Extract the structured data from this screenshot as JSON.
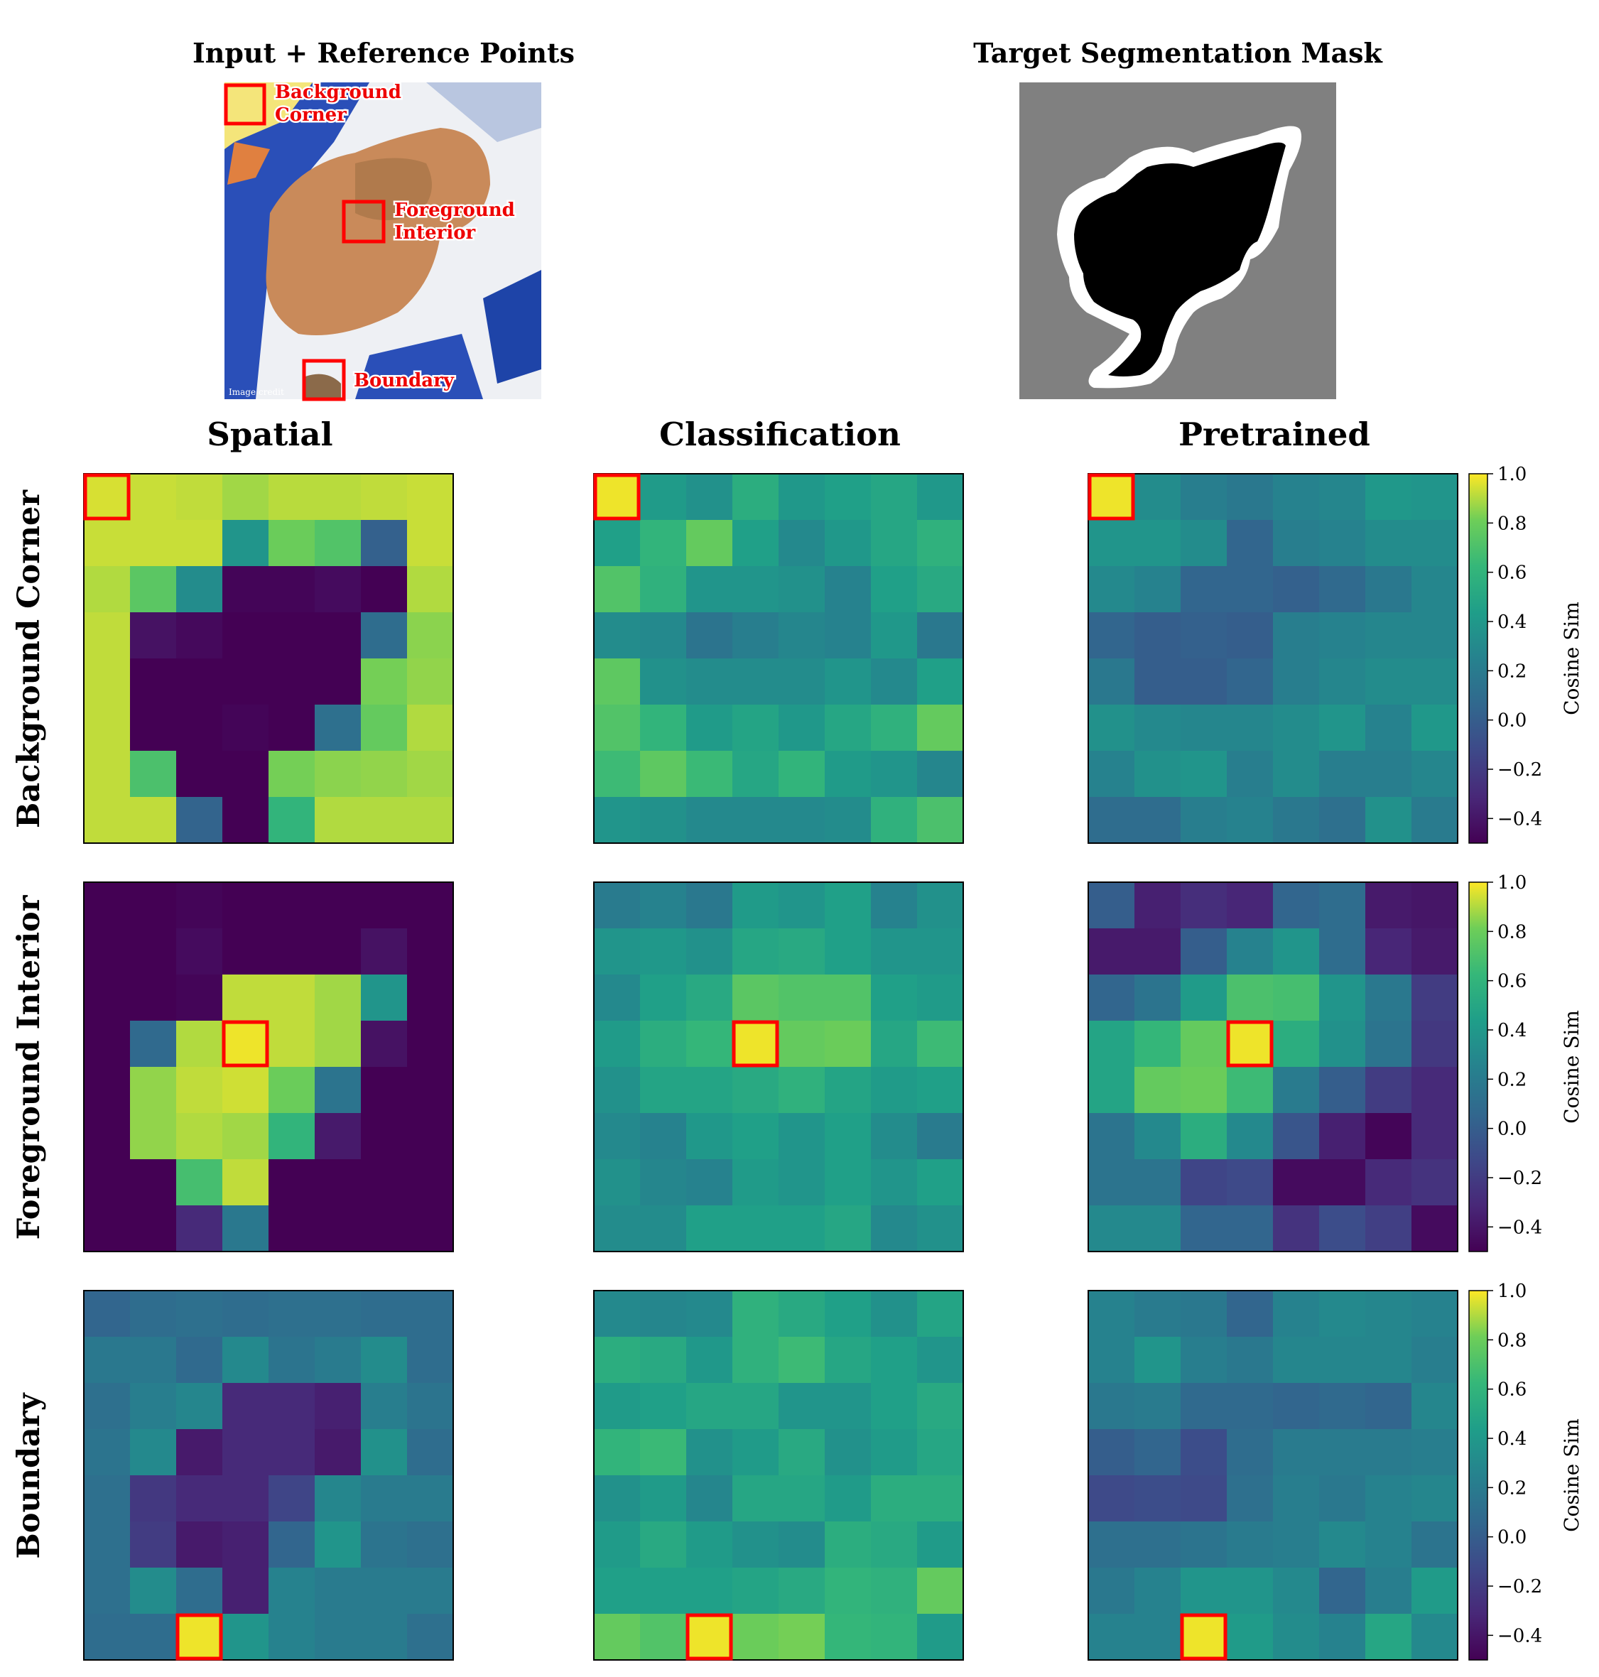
{
  "chart_data": {
    "type": "heatmap",
    "top_panels": {
      "input_title": "Input + Reference Points",
      "mask_title": "Target Segmentation Mask",
      "reference_labels": [
        {
          "id": "background",
          "line1": "Background",
          "line2": "Corner"
        },
        {
          "id": "foreground",
          "line1": "Foreground",
          "line2": "Interior"
        },
        {
          "id": "boundary",
          "line1": "Boundary",
          "line2": ""
        }
      ],
      "image_caption": "Image credit"
    },
    "column_titles": [
      "Spatial",
      "Classification",
      "Pretrained"
    ],
    "row_titles": [
      "Background Corner",
      "Foreground Interior",
      "Boundary"
    ],
    "colorbar": {
      "label": "Cosine Sim",
      "vmin": -0.5,
      "vmax": 1.0,
      "ticks": [
        "1.0",
        "0.8",
        "0.6",
        "0.4",
        "0.2",
        "0.0",
        "−0.2",
        "−0.4"
      ],
      "tick_values": [
        1.0,
        0.8,
        0.6,
        0.4,
        0.2,
        0.0,
        -0.2,
        -0.4
      ]
    },
    "grid_size": 8,
    "reference_cells": [
      [
        0,
        0
      ],
      [
        3,
        3
      ],
      [
        7,
        2
      ]
    ],
    "heatmaps": [
      [
        [
          [
            0.95,
            0.93,
            0.92,
            0.88,
            0.91,
            0.91,
            0.92,
            0.93
          ],
          [
            0.93,
            0.93,
            0.93,
            0.38,
            0.8,
            0.72,
            0.02,
            0.93
          ],
          [
            0.9,
            0.75,
            0.32,
            -0.48,
            -0.48,
            -0.45,
            -0.5,
            0.9
          ],
          [
            0.92,
            -0.42,
            -0.46,
            -0.5,
            -0.5,
            -0.5,
            0.1,
            0.85
          ],
          [
            0.92,
            -0.5,
            -0.5,
            -0.5,
            -0.5,
            -0.5,
            0.82,
            0.86
          ],
          [
            0.92,
            -0.5,
            -0.5,
            -0.48,
            -0.5,
            0.12,
            0.78,
            0.9
          ],
          [
            0.92,
            0.7,
            -0.5,
            -0.5,
            0.82,
            0.85,
            0.86,
            0.88
          ],
          [
            0.92,
            0.92,
            0.04,
            -0.5,
            0.6,
            0.9,
            0.9,
            0.9
          ]
        ],
        [
          [
            0.98,
            0.42,
            0.35,
            0.55,
            0.4,
            0.45,
            0.5,
            0.4
          ],
          [
            0.45,
            0.6,
            0.78,
            0.45,
            0.3,
            0.4,
            0.5,
            0.58
          ],
          [
            0.72,
            0.58,
            0.38,
            0.38,
            0.35,
            0.25,
            0.45,
            0.52
          ],
          [
            0.32,
            0.3,
            0.15,
            0.22,
            0.28,
            0.25,
            0.4,
            0.18
          ],
          [
            0.76,
            0.35,
            0.32,
            0.32,
            0.32,
            0.38,
            0.3,
            0.45
          ],
          [
            0.72,
            0.6,
            0.42,
            0.48,
            0.4,
            0.5,
            0.58,
            0.78
          ],
          [
            0.65,
            0.76,
            0.64,
            0.5,
            0.6,
            0.42,
            0.38,
            0.28
          ],
          [
            0.38,
            0.35,
            0.3,
            0.3,
            0.3,
            0.32,
            0.58,
            0.7
          ]
        ],
        [
          [
            0.98,
            0.32,
            0.22,
            0.18,
            0.25,
            0.28,
            0.4,
            0.38
          ],
          [
            0.38,
            0.38,
            0.32,
            0.05,
            0.22,
            0.25,
            0.32,
            0.32
          ],
          [
            0.3,
            0.25,
            0.05,
            0.05,
            0.02,
            0.08,
            0.18,
            0.28
          ],
          [
            0.05,
            0.0,
            0.02,
            0.0,
            0.22,
            0.25,
            0.28,
            0.28
          ],
          [
            0.18,
            0.0,
            0.0,
            0.05,
            0.22,
            0.28,
            0.32,
            0.32
          ],
          [
            0.35,
            0.3,
            0.28,
            0.28,
            0.32,
            0.38,
            0.25,
            0.4
          ],
          [
            0.25,
            0.35,
            0.38,
            0.22,
            0.32,
            0.22,
            0.22,
            0.28
          ],
          [
            0.1,
            0.1,
            0.22,
            0.25,
            0.18,
            0.12,
            0.35,
            0.2
          ]
        ]
      ],
      [
        [
          [
            -0.5,
            -0.5,
            -0.48,
            -0.5,
            -0.5,
            -0.5,
            -0.5,
            -0.5
          ],
          [
            -0.5,
            -0.5,
            -0.45,
            -0.5,
            -0.5,
            -0.5,
            -0.42,
            -0.5
          ],
          [
            -0.5,
            -0.5,
            -0.48,
            0.92,
            0.92,
            0.88,
            0.38,
            -0.5
          ],
          [
            -0.5,
            0.08,
            0.9,
            0.98,
            0.92,
            0.88,
            -0.42,
            -0.5
          ],
          [
            -0.5,
            0.86,
            0.92,
            0.94,
            0.8,
            0.15,
            -0.5,
            -0.5
          ],
          [
            -0.5,
            0.86,
            0.9,
            0.88,
            0.6,
            -0.38,
            -0.5,
            -0.5
          ],
          [
            -0.5,
            -0.5,
            0.68,
            0.92,
            -0.5,
            -0.5,
            -0.5,
            -0.5
          ],
          [
            -0.5,
            -0.5,
            -0.3,
            0.18,
            -0.5,
            -0.5,
            -0.5,
            -0.5
          ]
        ],
        [
          [
            0.2,
            0.25,
            0.18,
            0.42,
            0.38,
            0.45,
            0.25,
            0.35
          ],
          [
            0.38,
            0.4,
            0.35,
            0.5,
            0.52,
            0.45,
            0.38,
            0.38
          ],
          [
            0.3,
            0.45,
            0.52,
            0.75,
            0.72,
            0.72,
            0.45,
            0.42
          ],
          [
            0.42,
            0.55,
            0.62,
            0.98,
            0.78,
            0.8,
            0.5,
            0.65
          ],
          [
            0.35,
            0.48,
            0.48,
            0.52,
            0.58,
            0.48,
            0.42,
            0.45
          ],
          [
            0.3,
            0.25,
            0.4,
            0.45,
            0.38,
            0.45,
            0.32,
            0.2
          ],
          [
            0.35,
            0.28,
            0.25,
            0.42,
            0.38,
            0.45,
            0.38,
            0.45
          ],
          [
            0.32,
            0.32,
            0.45,
            0.45,
            0.45,
            0.5,
            0.3,
            0.35
          ]
        ],
        [
          [
            0.0,
            -0.35,
            -0.28,
            -0.32,
            0.05,
            0.1,
            -0.38,
            -0.4
          ],
          [
            -0.38,
            -0.38,
            0.0,
            0.25,
            0.38,
            0.1,
            -0.32,
            -0.38
          ],
          [
            0.05,
            0.15,
            0.42,
            0.7,
            0.68,
            0.38,
            0.18,
            -0.2
          ],
          [
            0.48,
            0.62,
            0.78,
            0.98,
            0.55,
            0.35,
            0.15,
            -0.22
          ],
          [
            0.48,
            0.78,
            0.8,
            0.65,
            0.2,
            0.0,
            -0.2,
            -0.3
          ],
          [
            0.15,
            0.3,
            0.55,
            0.3,
            -0.05,
            -0.35,
            -0.48,
            -0.3
          ],
          [
            0.15,
            0.15,
            -0.15,
            -0.12,
            -0.45,
            -0.45,
            -0.3,
            -0.25
          ],
          [
            0.3,
            0.3,
            0.05,
            0.05,
            -0.25,
            -0.1,
            -0.18,
            -0.45
          ]
        ]
      ],
      [
        [
          [
            0.05,
            0.1,
            0.12,
            0.1,
            0.12,
            0.12,
            0.1,
            0.1
          ],
          [
            0.18,
            0.18,
            0.08,
            0.3,
            0.15,
            0.2,
            0.32,
            0.1
          ],
          [
            0.12,
            0.22,
            0.28,
            -0.3,
            -0.3,
            -0.35,
            0.22,
            0.15
          ],
          [
            0.15,
            0.3,
            -0.38,
            -0.3,
            -0.3,
            -0.38,
            0.35,
            0.1
          ],
          [
            0.12,
            -0.22,
            -0.3,
            -0.3,
            -0.15,
            0.28,
            0.2,
            0.2
          ],
          [
            0.12,
            -0.2,
            -0.38,
            -0.35,
            0.05,
            0.38,
            0.15,
            0.12
          ],
          [
            0.12,
            0.32,
            0.1,
            -0.35,
            0.25,
            0.2,
            0.2,
            0.2
          ],
          [
            0.1,
            0.1,
            0.98,
            0.38,
            0.25,
            0.2,
            0.2,
            0.12
          ]
        ],
        [
          [
            0.3,
            0.28,
            0.3,
            0.58,
            0.52,
            0.45,
            0.35,
            0.48
          ],
          [
            0.55,
            0.52,
            0.4,
            0.58,
            0.65,
            0.5,
            0.45,
            0.38
          ],
          [
            0.42,
            0.45,
            0.5,
            0.5,
            0.38,
            0.38,
            0.45,
            0.52
          ],
          [
            0.6,
            0.64,
            0.35,
            0.42,
            0.52,
            0.35,
            0.42,
            0.5
          ],
          [
            0.35,
            0.42,
            0.28,
            0.5,
            0.5,
            0.42,
            0.55,
            0.55
          ],
          [
            0.42,
            0.52,
            0.42,
            0.35,
            0.32,
            0.55,
            0.52,
            0.42
          ],
          [
            0.45,
            0.45,
            0.45,
            0.48,
            0.52,
            0.6,
            0.58,
            0.78
          ],
          [
            0.78,
            0.72,
            0.98,
            0.8,
            0.82,
            0.62,
            0.6,
            0.42
          ]
        ],
        [
          [
            0.25,
            0.2,
            0.18,
            0.05,
            0.25,
            0.3,
            0.28,
            0.25
          ],
          [
            0.25,
            0.38,
            0.22,
            0.18,
            0.28,
            0.28,
            0.28,
            0.22
          ],
          [
            0.18,
            0.2,
            0.08,
            0.08,
            0.05,
            0.08,
            0.05,
            0.28
          ],
          [
            0.0,
            0.05,
            -0.1,
            0.1,
            0.2,
            0.2,
            0.2,
            0.22
          ],
          [
            -0.12,
            -0.1,
            -0.12,
            0.12,
            0.22,
            0.18,
            0.25,
            0.28
          ],
          [
            0.12,
            0.12,
            0.15,
            0.2,
            0.22,
            0.3,
            0.25,
            0.15
          ],
          [
            0.18,
            0.25,
            0.38,
            0.38,
            0.3,
            0.05,
            0.22,
            0.42
          ],
          [
            0.25,
            0.25,
            0.98,
            0.42,
            0.32,
            0.25,
            0.5,
            0.3
          ]
        ]
      ]
    ]
  }
}
